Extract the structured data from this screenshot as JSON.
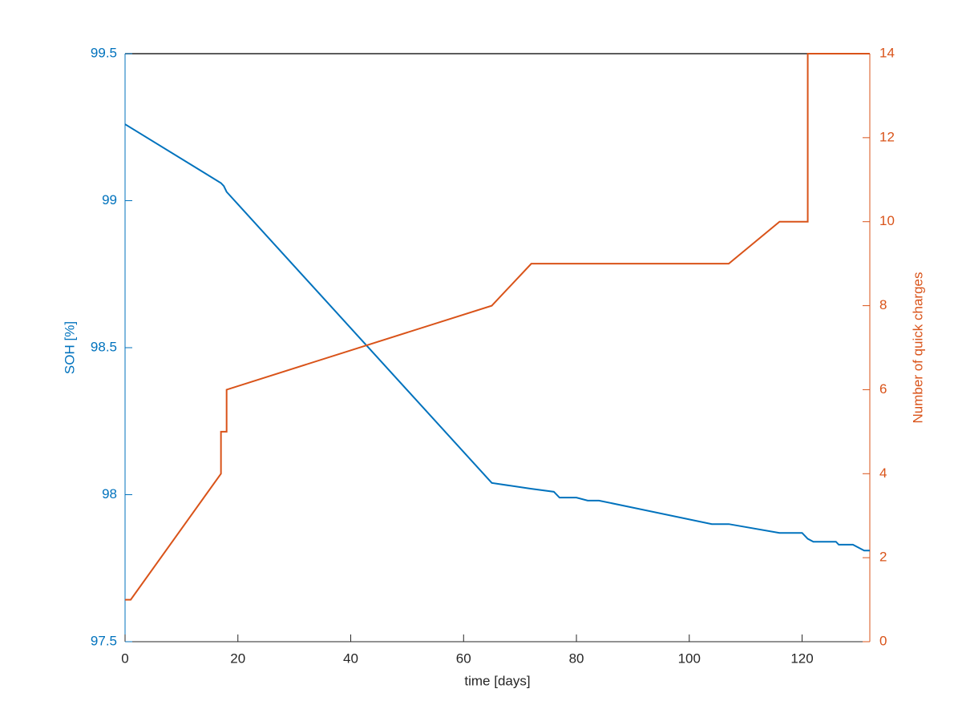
{
  "chart_data": {
    "type": "line",
    "xlabel": "time [days]",
    "ylabel": "SOH [%]",
    "y2label": "Number of quick charges",
    "xlim": [
      0,
      132
    ],
    "xticks": [
      0,
      20,
      40,
      60,
      80,
      100,
      120
    ],
    "ylim": [
      97.5,
      99.5
    ],
    "yticks": [
      97.5,
      98,
      98.5,
      99,
      99.5
    ],
    "y2lim": [
      0,
      14
    ],
    "y2ticks": [
      0,
      2,
      4,
      6,
      8,
      10,
      12,
      14
    ],
    "ycolor": "#0072bd",
    "y2color": "#d95319",
    "series": [
      {
        "name": "SOH",
        "color": "#0072bd",
        "axis": "y",
        "x": [
          0,
          17,
          17.5,
          18,
          65,
          72,
          76,
          77,
          80,
          82,
          84,
          104,
          107,
          116,
          120,
          121,
          122,
          126,
          126.5,
          129,
          131,
          132
        ],
        "values": [
          99.26,
          99.06,
          99.05,
          99.03,
          98.04,
          98.02,
          98.01,
          97.99,
          97.99,
          97.98,
          97.98,
          97.9,
          97.9,
          97.87,
          97.87,
          97.85,
          97.84,
          97.84,
          97.83,
          97.83,
          97.81,
          97.81
        ]
      },
      {
        "name": "Number of quick charges",
        "color": "#d95319",
        "axis": "y2",
        "x": [
          0,
          1,
          17,
          17,
          18,
          18,
          65,
          72,
          107,
          116,
          121,
          121,
          132
        ],
        "values": [
          1,
          1,
          4,
          5,
          5,
          6,
          8,
          9,
          9,
          10,
          10,
          14,
          14
        ]
      }
    ]
  }
}
